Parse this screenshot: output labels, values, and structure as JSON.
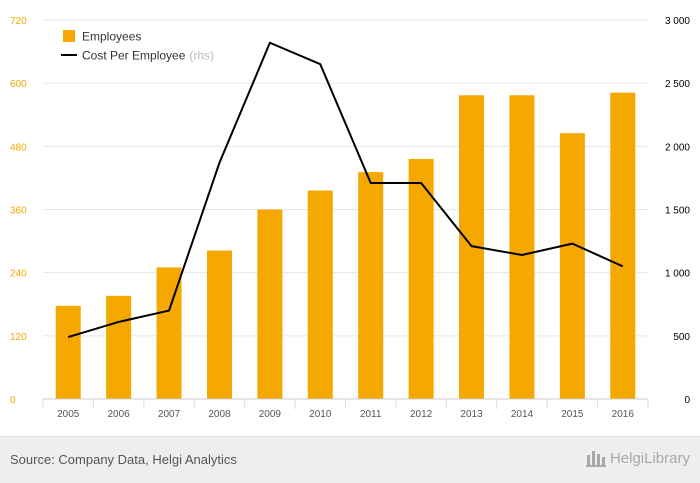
{
  "chart_data": {
    "type": "bar",
    "categories": [
      "2005",
      "2006",
      "2007",
      "2008",
      "2009",
      "2010",
      "2011",
      "2012",
      "2013",
      "2014",
      "2015",
      "2016"
    ],
    "series": [
      {
        "name": "Employees",
        "chart_type": "bar",
        "axis": "left",
        "color": "#f5a800",
        "values": [
          177,
          196,
          250,
          282,
          360,
          396,
          431,
          456,
          577,
          577,
          505,
          582
        ]
      },
      {
        "name": "Cost Per Employee",
        "suffix": "(rhs)",
        "chart_type": "line",
        "axis": "right",
        "color": "#000000",
        "values": [
          490,
          610,
          700,
          1870,
          2820,
          2650,
          1710,
          1710,
          1210,
          1140,
          1230,
          1050
        ]
      }
    ],
    "y_left": {
      "ticks": [
        "0",
        "120",
        "240",
        "360",
        "480",
        "600",
        "720"
      ],
      "range": [
        0,
        720
      ],
      "tick_color": "#f5a800"
    },
    "y_right": {
      "ticks": [
        "0",
        "500",
        "1 000",
        "1 500",
        "2 000",
        "2 500",
        "3 000"
      ],
      "range": [
        0,
        3000
      ],
      "tick_color": "#000000"
    },
    "grid": true,
    "legend_position": "top-left"
  },
  "footer": {
    "source": "Source: Company Data, Helgi Analytics",
    "brand": "HelgiLibrary"
  },
  "colors": {
    "bar": "#f5a800",
    "line": "#000000",
    "grid": "#e6e6e6",
    "footer_bg": "#eeeeee"
  }
}
